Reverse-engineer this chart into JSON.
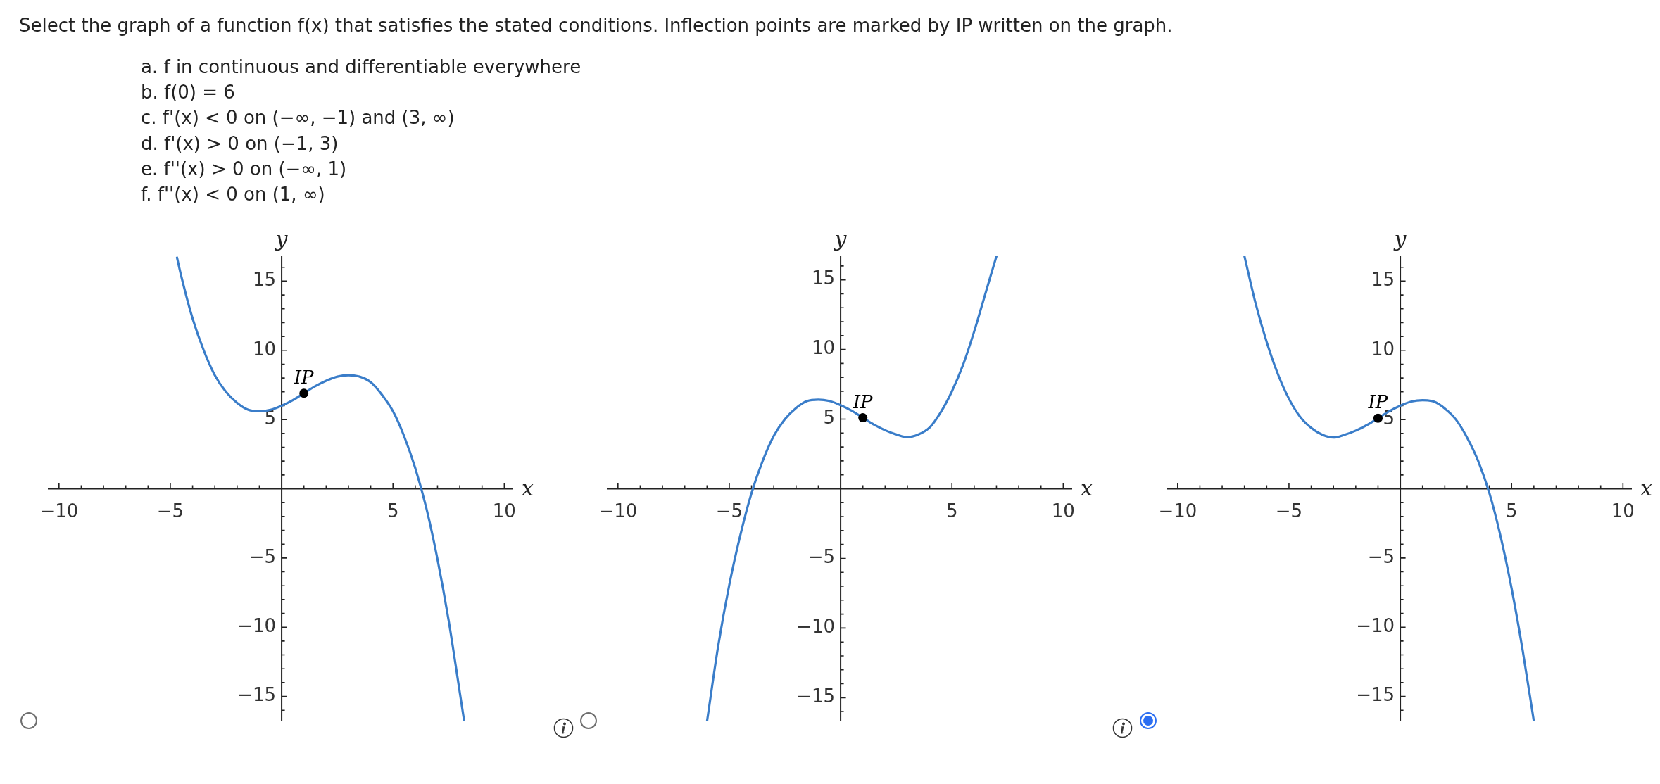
{
  "chart_data": [
    {
      "type": "other",
      "title": "Select the graph of a function f(x) that satisfies the stated conditions. Inflection points are marked by IP written on the graph.",
      "annotations": [
        "a. f in continuous and differentiable everywhere",
        "b. f(0) = 6",
        "c. f'(x) < 0 on (−∞, −1) and (3, ∞)",
        "d. f'(x) > 0 on (−1, 3)",
        "e. f''(x) > 0 on (−∞, 1)",
        "f. f''(x) < 0 on (1, ∞)"
      ]
    },
    {
      "type": "line",
      "xlabel": "x",
      "ylabel": "y",
      "xlim": [
        -10.5,
        10.4
      ],
      "ylim": [
        -16.8,
        16.8
      ],
      "xticks": [
        {
          "value": -10,
          "label": "−10"
        },
        {
          "value": -9,
          "label": null
        },
        {
          "value": -8,
          "label": null
        },
        {
          "value": -7,
          "label": null
        },
        {
          "value": -6,
          "label": null
        },
        {
          "value": -5,
          "label": "−5"
        },
        {
          "value": -4,
          "label": null
        },
        {
          "value": -3,
          "label": null
        },
        {
          "value": -2,
          "label": null
        },
        {
          "value": -1,
          "label": null
        },
        {
          "value": 1,
          "label": null
        },
        {
          "value": 2,
          "label": null
        },
        {
          "value": 3,
          "label": null
        },
        {
          "value": 4,
          "label": null
        },
        {
          "value": 5,
          "label": "5"
        },
        {
          "value": 6,
          "label": null
        },
        {
          "value": 7,
          "label": null
        },
        {
          "value": 8,
          "label": null
        },
        {
          "value": 9,
          "label": null
        },
        {
          "value": 10,
          "label": "10"
        }
      ],
      "yticks": [
        {
          "value": -16,
          "label": null
        },
        {
          "value": -15,
          "label": "−15"
        },
        {
          "value": -14,
          "label": null
        },
        {
          "value": -13,
          "label": null
        },
        {
          "value": -12,
          "label": null
        },
        {
          "value": -11,
          "label": null
        },
        {
          "value": -10,
          "label": "−10"
        },
        {
          "value": -9,
          "label": null
        },
        {
          "value": -8,
          "label": null
        },
        {
          "value": -7,
          "label": null
        },
        {
          "value": -6,
          "label": null
        },
        {
          "value": -5,
          "label": "−5"
        },
        {
          "value": -4,
          "label": null
        },
        {
          "value": -3,
          "label": null
        },
        {
          "value": -2,
          "label": null
        },
        {
          "value": -1,
          "label": null
        },
        {
          "value": 1,
          "label": null
        },
        {
          "value": 2,
          "label": null
        },
        {
          "value": 3,
          "label": null
        },
        {
          "value": 4,
          "label": null
        },
        5,
        {
          "value": 6,
          "label": null
        },
        {
          "value": 7,
          "label": null
        },
        {
          "value": 8,
          "label": null
        },
        {
          "value": 9,
          "label": null
        },
        10,
        {
          "value": 11,
          "label": null
        },
        {
          "value": 12,
          "label": null
        },
        {
          "value": 13,
          "label": null
        },
        {
          "value": 14,
          "label": null
        },
        15,
        {
          "value": 16,
          "label": null
        }
      ],
      "series": [
        {
          "color": "#3a7dc9",
          "x": [
            -4.7,
            -4.5,
            -4,
            -3.5,
            -3,
            -2.5,
            -2,
            -1.5,
            -1,
            -0.5,
            0,
            0.5,
            1,
            1.5,
            2,
            2.5,
            3,
            3.5,
            4,
            4.5,
            5,
            5.5,
            6,
            6.5,
            7,
            7.5,
            8,
            8.2
          ],
          "values": [
            16.7,
            15.3,
            12.3,
            10,
            8.2,
            7,
            6.2,
            5.7,
            5.6,
            5.7,
            6,
            6.4,
            6.9,
            7.4,
            7.8,
            8.1,
            8.2,
            8.1,
            7.7,
            6.8,
            5.6,
            3.8,
            1.5,
            -1.4,
            -5.1,
            -9.5,
            -14.7,
            -16.8
          ]
        },
        {
          "type": "scatter",
          "name": "IP",
          "color": "#000000",
          "x": [
            1
          ],
          "values": [
            6.9
          ]
        }
      ]
    },
    {
      "type": "line",
      "xlabel": "x",
      "ylabel": "y",
      "xlim": [
        -10.5,
        10.4
      ],
      "ylim": [
        -16.7,
        16.7
      ],
      "xticks": [
        {
          "value": -10,
          "label": "−10"
        },
        {
          "value": -9,
          "label": null
        },
        {
          "value": -8,
          "label": null
        },
        {
          "value": -7,
          "label": null
        },
        {
          "value": -6,
          "label": null
        },
        {
          "value": -5,
          "label": "−5"
        },
        {
          "value": -4,
          "label": null
        },
        {
          "value": -3,
          "label": null
        },
        {
          "value": -2,
          "label": null
        },
        {
          "value": -1,
          "label": null
        },
        {
          "value": 1,
          "label": null
        },
        {
          "value": 2,
          "label": null
        },
        {
          "value": 3,
          "label": null
        },
        {
          "value": 4,
          "label": null
        },
        {
          "value": 5,
          "label": "5"
        },
        {
          "value": 6,
          "label": null
        },
        {
          "value": 7,
          "label": null
        },
        {
          "value": 8,
          "label": null
        },
        {
          "value": 9,
          "label": null
        },
        {
          "value": 10,
          "label": "10"
        }
      ],
      "yticks": [
        {
          "value": -16,
          "label": null
        },
        {
          "value": -15,
          "label": "−15"
        },
        {
          "value": -14,
          "label": null
        },
        {
          "value": -13,
          "label": null
        },
        {
          "value": -12,
          "label": null
        },
        {
          "value": -11,
          "label": null
        },
        {
          "value": -10,
          "label": "−10"
        },
        {
          "value": -9,
          "label": null
        },
        {
          "value": -8,
          "label": null
        },
        {
          "value": -7,
          "label": null
        },
        {
          "value": -6,
          "label": null
        },
        {
          "value": -5,
          "label": "−5"
        },
        {
          "value": -4,
          "label": null
        },
        {
          "value": -3,
          "label": null
        },
        {
          "value": -2,
          "label": null
        },
        {
          "value": -1,
          "label": null
        },
        {
          "value": 1,
          "label": null
        },
        {
          "value": 2,
          "label": null
        },
        {
          "value": 3,
          "label": null
        },
        {
          "value": 4,
          "label": null
        },
        5,
        {
          "value": 6,
          "label": null
        },
        {
          "value": 7,
          "label": null
        },
        {
          "value": 8,
          "label": null
        },
        {
          "value": 9,
          "label": null
        },
        10,
        {
          "value": 11,
          "label": null
        },
        {
          "value": 12,
          "label": null
        },
        {
          "value": 13,
          "label": null
        },
        {
          "value": 14,
          "label": null
        },
        15,
        {
          "value": 16,
          "label": null
        }
      ],
      "series": [
        {
          "color": "#3a7dc9",
          "x": [
            -6,
            -5.5,
            -5,
            -4.5,
            -4,
            -3.5,
            -3,
            -2.5,
            -2,
            -1.5,
            -1,
            -0.5,
            0,
            0.5,
            1,
            1.5,
            2,
            2.5,
            3,
            3.5,
            4,
            4.5,
            5,
            5.5,
            6,
            6.5,
            7
          ],
          "values": [
            -16.7,
            -11.3,
            -6.9,
            -3.3,
            -0.3,
            2,
            3.8,
            5,
            5.8,
            6.3,
            6.4,
            6.3,
            6,
            5.6,
            5.1,
            4.6,
            4.2,
            3.9,
            3.7,
            3.9,
            4.4,
            5.5,
            7,
            8.9,
            11.3,
            14,
            16.7
          ]
        },
        {
          "type": "scatter",
          "name": "IP",
          "color": "#000000",
          "x": [
            1
          ],
          "values": [
            5.1
          ]
        }
      ]
    },
    {
      "type": "line",
      "xlabel": "x",
      "ylabel": "y",
      "xlim": [
        -10.5,
        10.4
      ],
      "ylim": [
        -16.8,
        16.8
      ],
      "xticks": [
        {
          "value": -10,
          "label": "−10"
        },
        {
          "value": -9,
          "label": null
        },
        {
          "value": -8,
          "label": null
        },
        {
          "value": -7,
          "label": null
        },
        {
          "value": -6,
          "label": null
        },
        {
          "value": -5,
          "label": "−5"
        },
        {
          "value": -4,
          "label": null
        },
        {
          "value": -3,
          "label": null
        },
        {
          "value": -2,
          "label": null
        },
        {
          "value": -1,
          "label": null
        },
        {
          "value": 1,
          "label": null
        },
        {
          "value": 2,
          "label": null
        },
        {
          "value": 3,
          "label": null
        },
        {
          "value": 4,
          "label": null
        },
        {
          "value": 5,
          "label": "5"
        },
        {
          "value": 6,
          "label": null
        },
        {
          "value": 7,
          "label": null
        },
        {
          "value": 8,
          "label": null
        },
        {
          "value": 9,
          "label": null
        },
        {
          "value": 10,
          "label": "10"
        }
      ],
      "yticks": [
        {
          "value": -16,
          "label": null
        },
        {
          "value": -15,
          "label": "−15"
        },
        {
          "value": -14,
          "label": null
        },
        {
          "value": -13,
          "label": null
        },
        {
          "value": -12,
          "label": null
        },
        {
          "value": -11,
          "label": null
        },
        {
          "value": -10,
          "label": "−10"
        },
        {
          "value": -9,
          "label": null
        },
        {
          "value": -8,
          "label": null
        },
        {
          "value": -7,
          "label": null
        },
        {
          "value": -6,
          "label": null
        },
        {
          "value": -5,
          "label": "−5"
        },
        {
          "value": -4,
          "label": null
        },
        {
          "value": -3,
          "label": null
        },
        {
          "value": -2,
          "label": null
        },
        {
          "value": -1,
          "label": null
        },
        {
          "value": 1,
          "label": null
        },
        {
          "value": 2,
          "label": null
        },
        {
          "value": 3,
          "label": null
        },
        {
          "value": 4,
          "label": null
        },
        5,
        {
          "value": 6,
          "label": null
        },
        {
          "value": 7,
          "label": null
        },
        {
          "value": 8,
          "label": null
        },
        {
          "value": 9,
          "label": null
        },
        10,
        {
          "value": 11,
          "label": null
        },
        {
          "value": 12,
          "label": null
        },
        {
          "value": 13,
          "label": null
        },
        {
          "value": 14,
          "label": null
        },
        15,
        {
          "value": 16,
          "label": null
        }
      ],
      "series": [
        {
          "color": "#3a7dc9",
          "x": [
            -7,
            -6.5,
            -6,
            -5.5,
            -5,
            -4.5,
            -4,
            -3.5,
            -3,
            -2.5,
            -2,
            -1.5,
            -1,
            -0.5,
            0,
            0.5,
            1,
            1.5,
            2,
            2.5,
            3,
            3.5,
            4,
            4.5,
            5,
            5.5,
            6
          ],
          "values": [
            16.8,
            13.4,
            10.6,
            8.3,
            6.5,
            5.2,
            4.4,
            3.9,
            3.7,
            3.9,
            4.2,
            4.6,
            5.1,
            5.6,
            6,
            6.3,
            6.4,
            6.3,
            5.8,
            5,
            3.7,
            2,
            -0.3,
            -3.4,
            -7.2,
            -11.7,
            -16.8
          ]
        },
        {
          "type": "scatter",
          "name": "IP",
          "color": "#000000",
          "x": [
            -1
          ],
          "values": [
            5.1
          ]
        }
      ]
    }
  ]
}
